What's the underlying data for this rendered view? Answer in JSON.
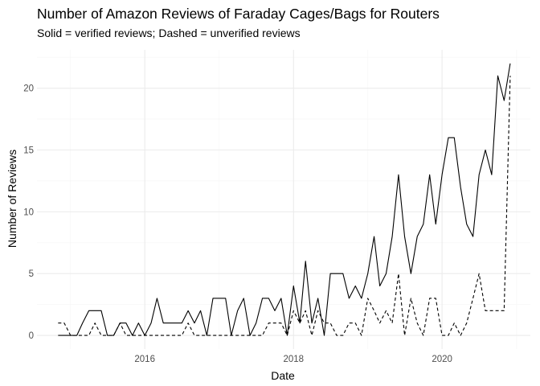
{
  "chart_data": {
    "type": "line",
    "title": "Number of Amazon Reviews of Faraday Cages/Bags for Routers",
    "subtitle": "Solid = verified reviews; Dashed = unverified reviews",
    "xlabel": "Date",
    "ylabel": "Number of Reviews",
    "x_axis_type": "date",
    "xlim": [
      "2014-07-20",
      "2021-03-10"
    ],
    "ylim": [
      -1.1,
      23.1
    ],
    "x_ticks": [
      "2016-01-01",
      "2018-01-01",
      "2020-01-01"
    ],
    "x_tick_labels": [
      "2016",
      "2018",
      "2020"
    ],
    "y_ticks": [
      0,
      5,
      10,
      15,
      20
    ],
    "y_tick_labels": [
      "0",
      "5",
      "10",
      "15",
      "20"
    ],
    "grid": true,
    "legend": "none",
    "colors": {
      "line": "#000000",
      "grid_major": "#ebebeb",
      "grid_minor": "#f5f5f5",
      "tick_label": "#4d4d4d",
      "background": "#ffffff"
    },
    "series": [
      {
        "line_style": "solid",
        "x": [
          "2014-11-01",
          "2014-12-01",
          "2015-01-01",
          "2015-02-01",
          "2015-03-01",
          "2015-04-01",
          "2015-05-01",
          "2015-06-01",
          "2015-07-01",
          "2015-08-01",
          "2015-09-01",
          "2015-10-01",
          "2015-11-01",
          "2015-12-01",
          "2016-01-01",
          "2016-02-01",
          "2016-03-01",
          "2016-04-01",
          "2016-05-01",
          "2016-06-01",
          "2016-07-01",
          "2016-08-01",
          "2016-09-01",
          "2016-10-01",
          "2016-11-01",
          "2016-12-01",
          "2017-01-01",
          "2017-02-01",
          "2017-03-01",
          "2017-04-01",
          "2017-05-01",
          "2017-06-01",
          "2017-07-01",
          "2017-08-01",
          "2017-09-01",
          "2017-10-01",
          "2017-11-01",
          "2017-12-01",
          "2018-01-01",
          "2018-02-01",
          "2018-03-01",
          "2018-04-01",
          "2018-05-01",
          "2018-06-01",
          "2018-07-01",
          "2018-08-01",
          "2018-09-01",
          "2018-10-01",
          "2018-11-01",
          "2018-12-01",
          "2019-01-01",
          "2019-02-01",
          "2019-03-01",
          "2019-04-01",
          "2019-05-01",
          "2019-06-01",
          "2019-07-01",
          "2019-08-01",
          "2019-09-01",
          "2019-10-01",
          "2019-11-01",
          "2019-12-01",
          "2020-01-01",
          "2020-02-01",
          "2020-03-01",
          "2020-04-01",
          "2020-05-01",
          "2020-06-01",
          "2020-07-01",
          "2020-08-01",
          "2020-09-01",
          "2020-10-01",
          "2020-11-01",
          "2020-12-01"
        ],
        "values": [
          0,
          0,
          0,
          0,
          1,
          2,
          2,
          2,
          0,
          0,
          1,
          1,
          0,
          1,
          0,
          1,
          3,
          1,
          1,
          1,
          1,
          2,
          1,
          2,
          0,
          3,
          3,
          3,
          0,
          2,
          3,
          0,
          1,
          3,
          3,
          2,
          3,
          0,
          4,
          1,
          6,
          1,
          3,
          0,
          5,
          5,
          5,
          3,
          4,
          3,
          5,
          8,
          4,
          5,
          8,
          13,
          8,
          5,
          8,
          9,
          13,
          9,
          13,
          16,
          16,
          12,
          9,
          8,
          13,
          15,
          13,
          21,
          19,
          22
        ]
      },
      {
        "line_style": "dashed",
        "x": [
          "2014-11-01",
          "2014-12-01",
          "2015-01-01",
          "2015-02-01",
          "2015-03-01",
          "2015-04-01",
          "2015-05-01",
          "2015-06-01",
          "2015-07-01",
          "2015-08-01",
          "2015-09-01",
          "2015-10-01",
          "2015-11-01",
          "2015-12-01",
          "2016-01-01",
          "2016-02-01",
          "2016-03-01",
          "2016-04-01",
          "2016-05-01",
          "2016-06-01",
          "2016-07-01",
          "2016-08-01",
          "2016-09-01",
          "2016-10-01",
          "2016-11-01",
          "2016-12-01",
          "2017-01-01",
          "2017-02-01",
          "2017-03-01",
          "2017-04-01",
          "2017-05-01",
          "2017-06-01",
          "2017-07-01",
          "2017-08-01",
          "2017-09-01",
          "2017-10-01",
          "2017-11-01",
          "2017-12-01",
          "2018-01-01",
          "2018-02-01",
          "2018-03-01",
          "2018-04-01",
          "2018-05-01",
          "2018-06-01",
          "2018-07-01",
          "2018-08-01",
          "2018-09-01",
          "2018-10-01",
          "2018-11-01",
          "2018-12-01",
          "2019-01-01",
          "2019-02-01",
          "2019-03-01",
          "2019-04-01",
          "2019-05-01",
          "2019-06-01",
          "2019-07-01",
          "2019-08-01",
          "2019-09-01",
          "2019-10-01",
          "2019-11-01",
          "2019-12-01",
          "2020-01-01",
          "2020-02-01",
          "2020-03-01",
          "2020-04-01",
          "2020-05-01",
          "2020-06-01",
          "2020-07-01",
          "2020-08-01",
          "2020-09-01",
          "2020-10-01",
          "2020-11-01",
          "2020-12-01"
        ],
        "values": [
          1,
          1,
          0,
          0,
          0,
          0,
          1,
          0,
          0,
          0,
          1,
          0,
          0,
          0,
          0,
          0,
          0,
          0,
          0,
          0,
          0,
          1,
          0,
          0,
          0,
          0,
          0,
          0,
          0,
          0,
          0,
          0,
          0,
          0,
          1,
          1,
          1,
          0,
          2,
          1,
          2,
          0,
          2,
          1,
          1,
          0,
          0,
          1,
          1,
          0,
          3,
          2,
          1,
          2,
          1,
          5,
          0,
          3,
          1,
          0,
          3,
          3,
          0,
          0,
          1,
          0,
          1,
          3,
          5,
          2,
          2,
          2,
          2,
          21
        ]
      }
    ]
  }
}
